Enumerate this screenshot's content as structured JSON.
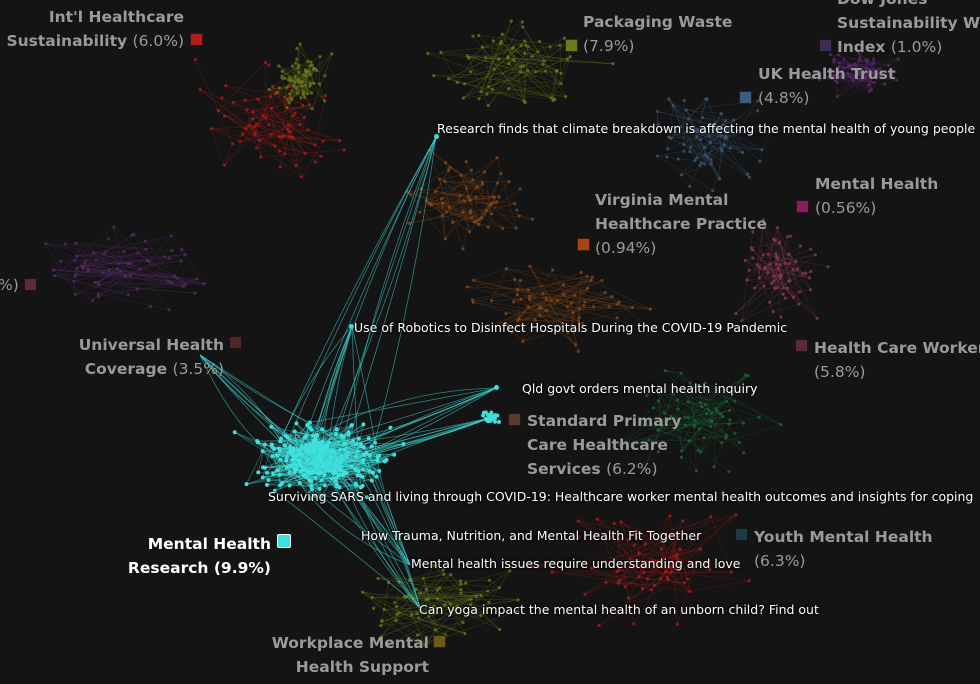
{
  "clusters": [
    {
      "id": "intl",
      "name_lines": [
        "Int'l Healthcare",
        "Sustainability"
      ],
      "pct": "(6.0%)",
      "color": "#b31c1c"
    },
    {
      "id": "packaging",
      "name_lines": [
        "Packaging Waste"
      ],
      "pct": "(7.9%)",
      "color": "#6e7a1a"
    },
    {
      "id": "dowjones",
      "name_lines": [
        "Dow Jones",
        "Sustainability Wor",
        "Index"
      ],
      "pct": "(1.0%)",
      "color": "#3d2d55"
    },
    {
      "id": "ukhealth",
      "name_lines": [
        "UK Health Trust"
      ],
      "pct": "(4.8%)",
      "color": "#3b5c7a"
    },
    {
      "id": "mentalhealth",
      "name_lines": [
        "Mental Health"
      ],
      "pct": "(0.56%)",
      "color": "#8a1d5c"
    },
    {
      "id": "virginia",
      "name_lines": [
        "Virginia Mental",
        "Healthcare Practice"
      ],
      "pct": "(0.94%)",
      "color": "#a84418"
    },
    {
      "id": "leftcut",
      "name_lines": [],
      "pct": "%)",
      "color": "#5a2a3a"
    },
    {
      "id": "universal",
      "name_lines": [
        "Universal Health",
        "Coverage"
      ],
      "pct": "(3.5%)",
      "color": "#4a2a25"
    },
    {
      "id": "hcworkers",
      "name_lines": [
        "Health Care Workers"
      ],
      "pct": "(5.8%)",
      "color": "#5a2a35"
    },
    {
      "id": "primary",
      "name_lines": [
        "Standard Primary",
        "Care Healthcare",
        "Services"
      ],
      "pct": "(6.2%)",
      "color": "#5a3a2a"
    },
    {
      "id": "mhresearch",
      "name_lines": [
        "Mental Health",
        "Research"
      ],
      "pct": "(9.9%)",
      "color": "#3ee0dc"
    },
    {
      "id": "youth",
      "name_lines": [
        "Youth Mental Health"
      ],
      "pct": "(6.3%)",
      "color": "#1e3a42"
    },
    {
      "id": "workplace",
      "name_lines": [
        "Workplace Mental",
        "Health Support"
      ],
      "pct": "",
      "color": "#6a5a18"
    }
  ],
  "articles": [
    "Research finds that climate breakdown is affecting the mental health of young people",
    "Use of Robotics to Disinfect Hospitals During the COVID-19 Pandemic",
    "Qld govt orders mental health inquiry",
    "Surviving SARS and living through COVID-19: Healthcare worker mental health outcomes and insights for coping",
    "How Trauma, Nutrition, and Mental Health Fit Together",
    "Mental health issues require understanding and love",
    "Can yoga impact the mental health of an unborn child? Find out"
  ],
  "colors": {
    "background": "#141414",
    "highlight": "#3ee0dc",
    "red": "#b31c1c",
    "olive": "#6e7a1a",
    "purple": "#5a2a6a",
    "green": "#1e6a3a",
    "steel": "#3b5c7a",
    "pink": "#8a3a5a",
    "orange": "#8a4a1a"
  }
}
